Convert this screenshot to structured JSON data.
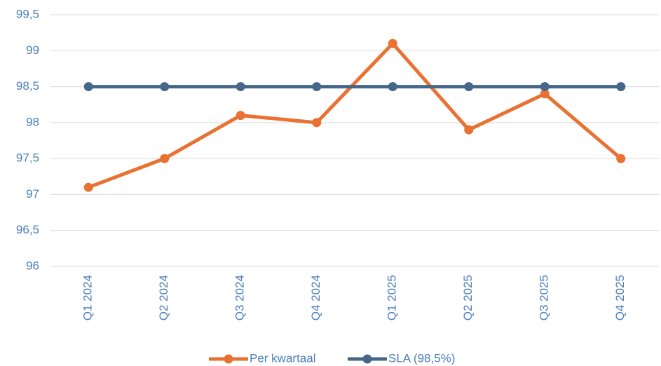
{
  "chart_data": {
    "type": "line",
    "categories": [
      "Q1 2024",
      "Q2 2024",
      "Q3 2024",
      "Q4 2024",
      "Q1 2025",
      "Q2 2025",
      "Q3 2025",
      "Q4 2025"
    ],
    "series": [
      {
        "name": "Per kwartaal",
        "color": "#e97132",
        "values": [
          97.1,
          97.5,
          98.1,
          98.0,
          99.1,
          97.9,
          98.4,
          97.5
        ]
      },
      {
        "name": "SLA (98,5%)",
        "color": "#44678a",
        "values": [
          98.5,
          98.5,
          98.5,
          98.5,
          98.5,
          98.5,
          98.5,
          98.5
        ]
      }
    ],
    "ylim": [
      96,
      99.5
    ],
    "yticks": [
      96,
      {
        "value": 96.5,
        "label": "96,5"
      },
      97,
      {
        "value": 97.5,
        "label": "97,5"
      },
      98,
      {
        "value": 98.5,
        "label": "98,5"
      },
      99,
      {
        "value": 99.5,
        "label": "99,5"
      }
    ],
    "grid": true,
    "legend": "bottom"
  }
}
